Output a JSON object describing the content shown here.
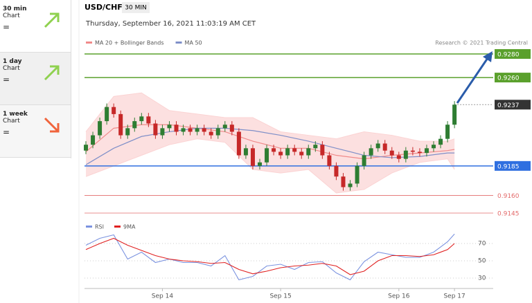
{
  "sidebar": [
    {
      "period": "30 min",
      "label": "Chart",
      "sign": "="
    },
    {
      "period": "1 day",
      "label": "Chart",
      "sign": "="
    },
    {
      "period": "1 week",
      "label": "Chart",
      "sign": "="
    }
  ],
  "header": {
    "symbol": "USD/CHF",
    "timeframe": "30 MIN",
    "datetime": "Thursday, September 16, 2021 11:03:19 AM CET",
    "credit": "Research © 2021 Trading Central"
  },
  "chart_data": [
    {
      "type": "candlestick",
      "categories": [
        null,
        null,
        null,
        null,
        null,
        null,
        null,
        null,
        null,
        null,
        null,
        "Sep 14",
        null,
        null,
        null,
        null,
        null,
        null,
        null,
        null,
        null,
        null,
        null,
        null,
        null,
        null,
        null,
        null,
        "Sep 15",
        null,
        null,
        null,
        null,
        null,
        null,
        null,
        null,
        null,
        null,
        null,
        null,
        null,
        null,
        null,
        null,
        "Sep 16",
        null,
        null,
        null,
        null,
        null,
        null,
        null,
        "Sep 17"
      ],
      "open": [
        0.9198,
        0.9203,
        0.9211,
        0.9223,
        0.9235,
        0.9229,
        0.9211,
        0.9217,
        0.9223,
        0.9227,
        0.9221,
        0.9211,
        0.9217,
        0.922,
        0.9214,
        0.9217,
        0.9214,
        0.9217,
        0.9214,
        0.9211,
        0.9217,
        0.922,
        0.9214,
        0.9194,
        0.92,
        0.9185,
        0.9188,
        0.92,
        0.9197,
        0.9194,
        0.92,
        0.9197,
        0.9194,
        0.92,
        0.9203,
        0.9194,
        0.9185,
        0.9176,
        0.9167,
        0.917,
        0.9185,
        0.9194,
        0.92,
        0.9204,
        0.9198,
        0.9194,
        0.9191,
        0.9198,
        0.9197,
        0.9196,
        0.92,
        0.9203,
        0.9208,
        0.922
      ],
      "high": [
        0.9206,
        0.9214,
        0.9226,
        0.9238,
        0.9238,
        0.9232,
        0.922,
        0.9226,
        0.923,
        0.923,
        0.9224,
        0.922,
        0.9223,
        0.9223,
        0.922,
        0.922,
        0.922,
        0.922,
        0.9217,
        0.922,
        0.9223,
        0.9223,
        0.9217,
        0.9203,
        0.9203,
        0.9191,
        0.9203,
        0.9203,
        0.92,
        0.9203,
        0.9203,
        0.92,
        0.9203,
        0.9206,
        0.9206,
        0.9197,
        0.9188,
        0.9179,
        0.9173,
        0.9188,
        0.9197,
        0.9203,
        0.9207,
        0.9207,
        0.9201,
        0.9197,
        0.9201,
        0.9201,
        0.92,
        0.9203,
        0.9206,
        0.9211,
        0.9223,
        0.924
      ],
      "low": [
        0.9195,
        0.92,
        0.9208,
        0.922,
        0.9226,
        0.9208,
        0.9208,
        0.9214,
        0.922,
        0.9218,
        0.9208,
        0.9208,
        0.9214,
        0.9211,
        0.9211,
        0.9211,
        0.9211,
        0.9211,
        0.9208,
        0.9208,
        0.9214,
        0.9211,
        0.9191,
        0.9191,
        0.9182,
        0.9182,
        0.9185,
        0.9194,
        0.9191,
        0.9191,
        0.9194,
        0.9191,
        0.9191,
        0.9197,
        0.9191,
        0.9182,
        0.9173,
        0.9164,
        0.9164,
        0.9167,
        0.9182,
        0.9191,
        0.9197,
        0.9195,
        0.9191,
        0.9188,
        0.9188,
        0.9194,
        0.9193,
        0.9193,
        0.9197,
        0.92,
        0.9205,
        0.9217
      ],
      "close": [
        0.9203,
        0.9211,
        0.9223,
        0.9235,
        0.9229,
        0.9211,
        0.9217,
        0.9223,
        0.9227,
        0.9221,
        0.9211,
        0.9217,
        0.922,
        0.9214,
        0.9217,
        0.9214,
        0.9217,
        0.9214,
        0.9211,
        0.9217,
        0.922,
        0.9214,
        0.9194,
        0.92,
        0.9185,
        0.9188,
        0.92,
        0.9197,
        0.9194,
        0.92,
        0.9197,
        0.9194,
        0.92,
        0.9203,
        0.9194,
        0.9185,
        0.9176,
        0.9167,
        0.917,
        0.9185,
        0.9194,
        0.92,
        0.9204,
        0.9198,
        0.9194,
        0.9191,
        0.9198,
        0.9197,
        0.9196,
        0.92,
        0.9203,
        0.9208,
        0.922,
        0.9237
      ],
      "up_color": "#2e7d32",
      "down_color": "#c62828",
      "ylim": [
        0.914,
        0.929
      ],
      "series": [
        {
          "name": "MA 20 + Bollinger Bands",
          "color": "#f08a8a",
          "band_color": "#fbd3d3",
          "x": [
            0,
            4,
            8,
            12,
            16,
            20,
            24,
            28,
            32,
            36,
            40,
            44,
            48,
            52,
            53
          ],
          "values": [
            0.9197,
            0.9217,
            0.922,
            0.922,
            0.9217,
            0.9214,
            0.9206,
            0.92,
            0.92,
            0.9194,
            0.9191,
            0.9194,
            0.9196,
            0.9198,
            0.9199
          ],
          "upper": [
            0.9214,
            0.9244,
            0.9247,
            0.9232,
            0.9229,
            0.9226,
            0.9226,
            0.9214,
            0.9211,
            0.9208,
            0.9214,
            0.9211,
            0.9206,
            0.9206,
            0.9208
          ],
          "lower": [
            0.9176,
            0.9185,
            0.9194,
            0.9203,
            0.9208,
            0.9205,
            0.9182,
            0.9179,
            0.9182,
            0.9162,
            0.9165,
            0.9179,
            0.9188,
            0.9191,
            0.9182
          ]
        },
        {
          "name": "MA 50",
          "color": "#7f8fc8",
          "x": [
            0,
            4,
            8,
            12,
            16,
            20,
            24,
            28,
            32,
            36,
            40,
            44,
            48,
            52,
            53
          ],
          "values": [
            0.9186,
            0.92,
            0.921,
            0.9214,
            0.9217,
            0.9217,
            0.9215,
            0.9211,
            0.9206,
            0.92,
            0.9194,
            0.9192,
            0.9193,
            0.9196,
            0.9196
          ]
        }
      ],
      "levels": [
        {
          "value": 0.928,
          "label": "0.9280",
          "color": "#5aa02c",
          "style": "box",
          "line": "solid"
        },
        {
          "value": 0.926,
          "label": "0.9260",
          "color": "#5aa02c",
          "style": "box",
          "line": "solid"
        },
        {
          "value": 0.9237,
          "label": "0.9237",
          "color": "#333333",
          "style": "box",
          "line": "dotted"
        },
        {
          "value": 0.9185,
          "label": "0.9185",
          "color": "#2f6fe0",
          "style": "box",
          "line": "solid"
        },
        {
          "value": 0.916,
          "label": "0.9160",
          "color": "#e36a6a",
          "style": "text",
          "line": "solid"
        },
        {
          "value": 0.9145,
          "label": "0.9145",
          "color": "#e36a6a",
          "style": "text",
          "line": "solid"
        }
      ]
    },
    {
      "type": "line",
      "ylim": [
        14,
        86
      ],
      "yticks": [
        30,
        50,
        70
      ],
      "grid": true,
      "series": [
        {
          "name": "RSI",
          "color": "#7b93e0",
          "x": [
            0,
            2,
            4,
            6,
            8,
            10,
            12,
            14,
            16,
            18,
            20,
            22,
            24,
            26,
            28,
            30,
            32,
            34,
            36,
            38,
            40,
            42,
            44,
            46,
            48,
            50,
            52,
            53
          ],
          "values": [
            68,
            76,
            80,
            52,
            60,
            48,
            52,
            48,
            48,
            44,
            56,
            28,
            32,
            44,
            46,
            40,
            48,
            49,
            36,
            28,
            49,
            60,
            57,
            54,
            54,
            60,
            72,
            81
          ]
        },
        {
          "name": "9MA",
          "color": "#e02020",
          "x": [
            0,
            2,
            4,
            6,
            8,
            10,
            12,
            14,
            16,
            18,
            20,
            22,
            24,
            26,
            28,
            30,
            32,
            34,
            36,
            38,
            40,
            42,
            44,
            46,
            48,
            50,
            52,
            53
          ],
          "values": [
            63,
            70,
            76,
            68,
            62,
            56,
            52,
            50,
            49,
            47,
            48,
            40,
            35,
            38,
            42,
            44,
            45,
            47,
            44,
            34,
            38,
            50,
            56,
            56,
            55,
            57,
            63,
            70
          ]
        }
      ]
    }
  ]
}
